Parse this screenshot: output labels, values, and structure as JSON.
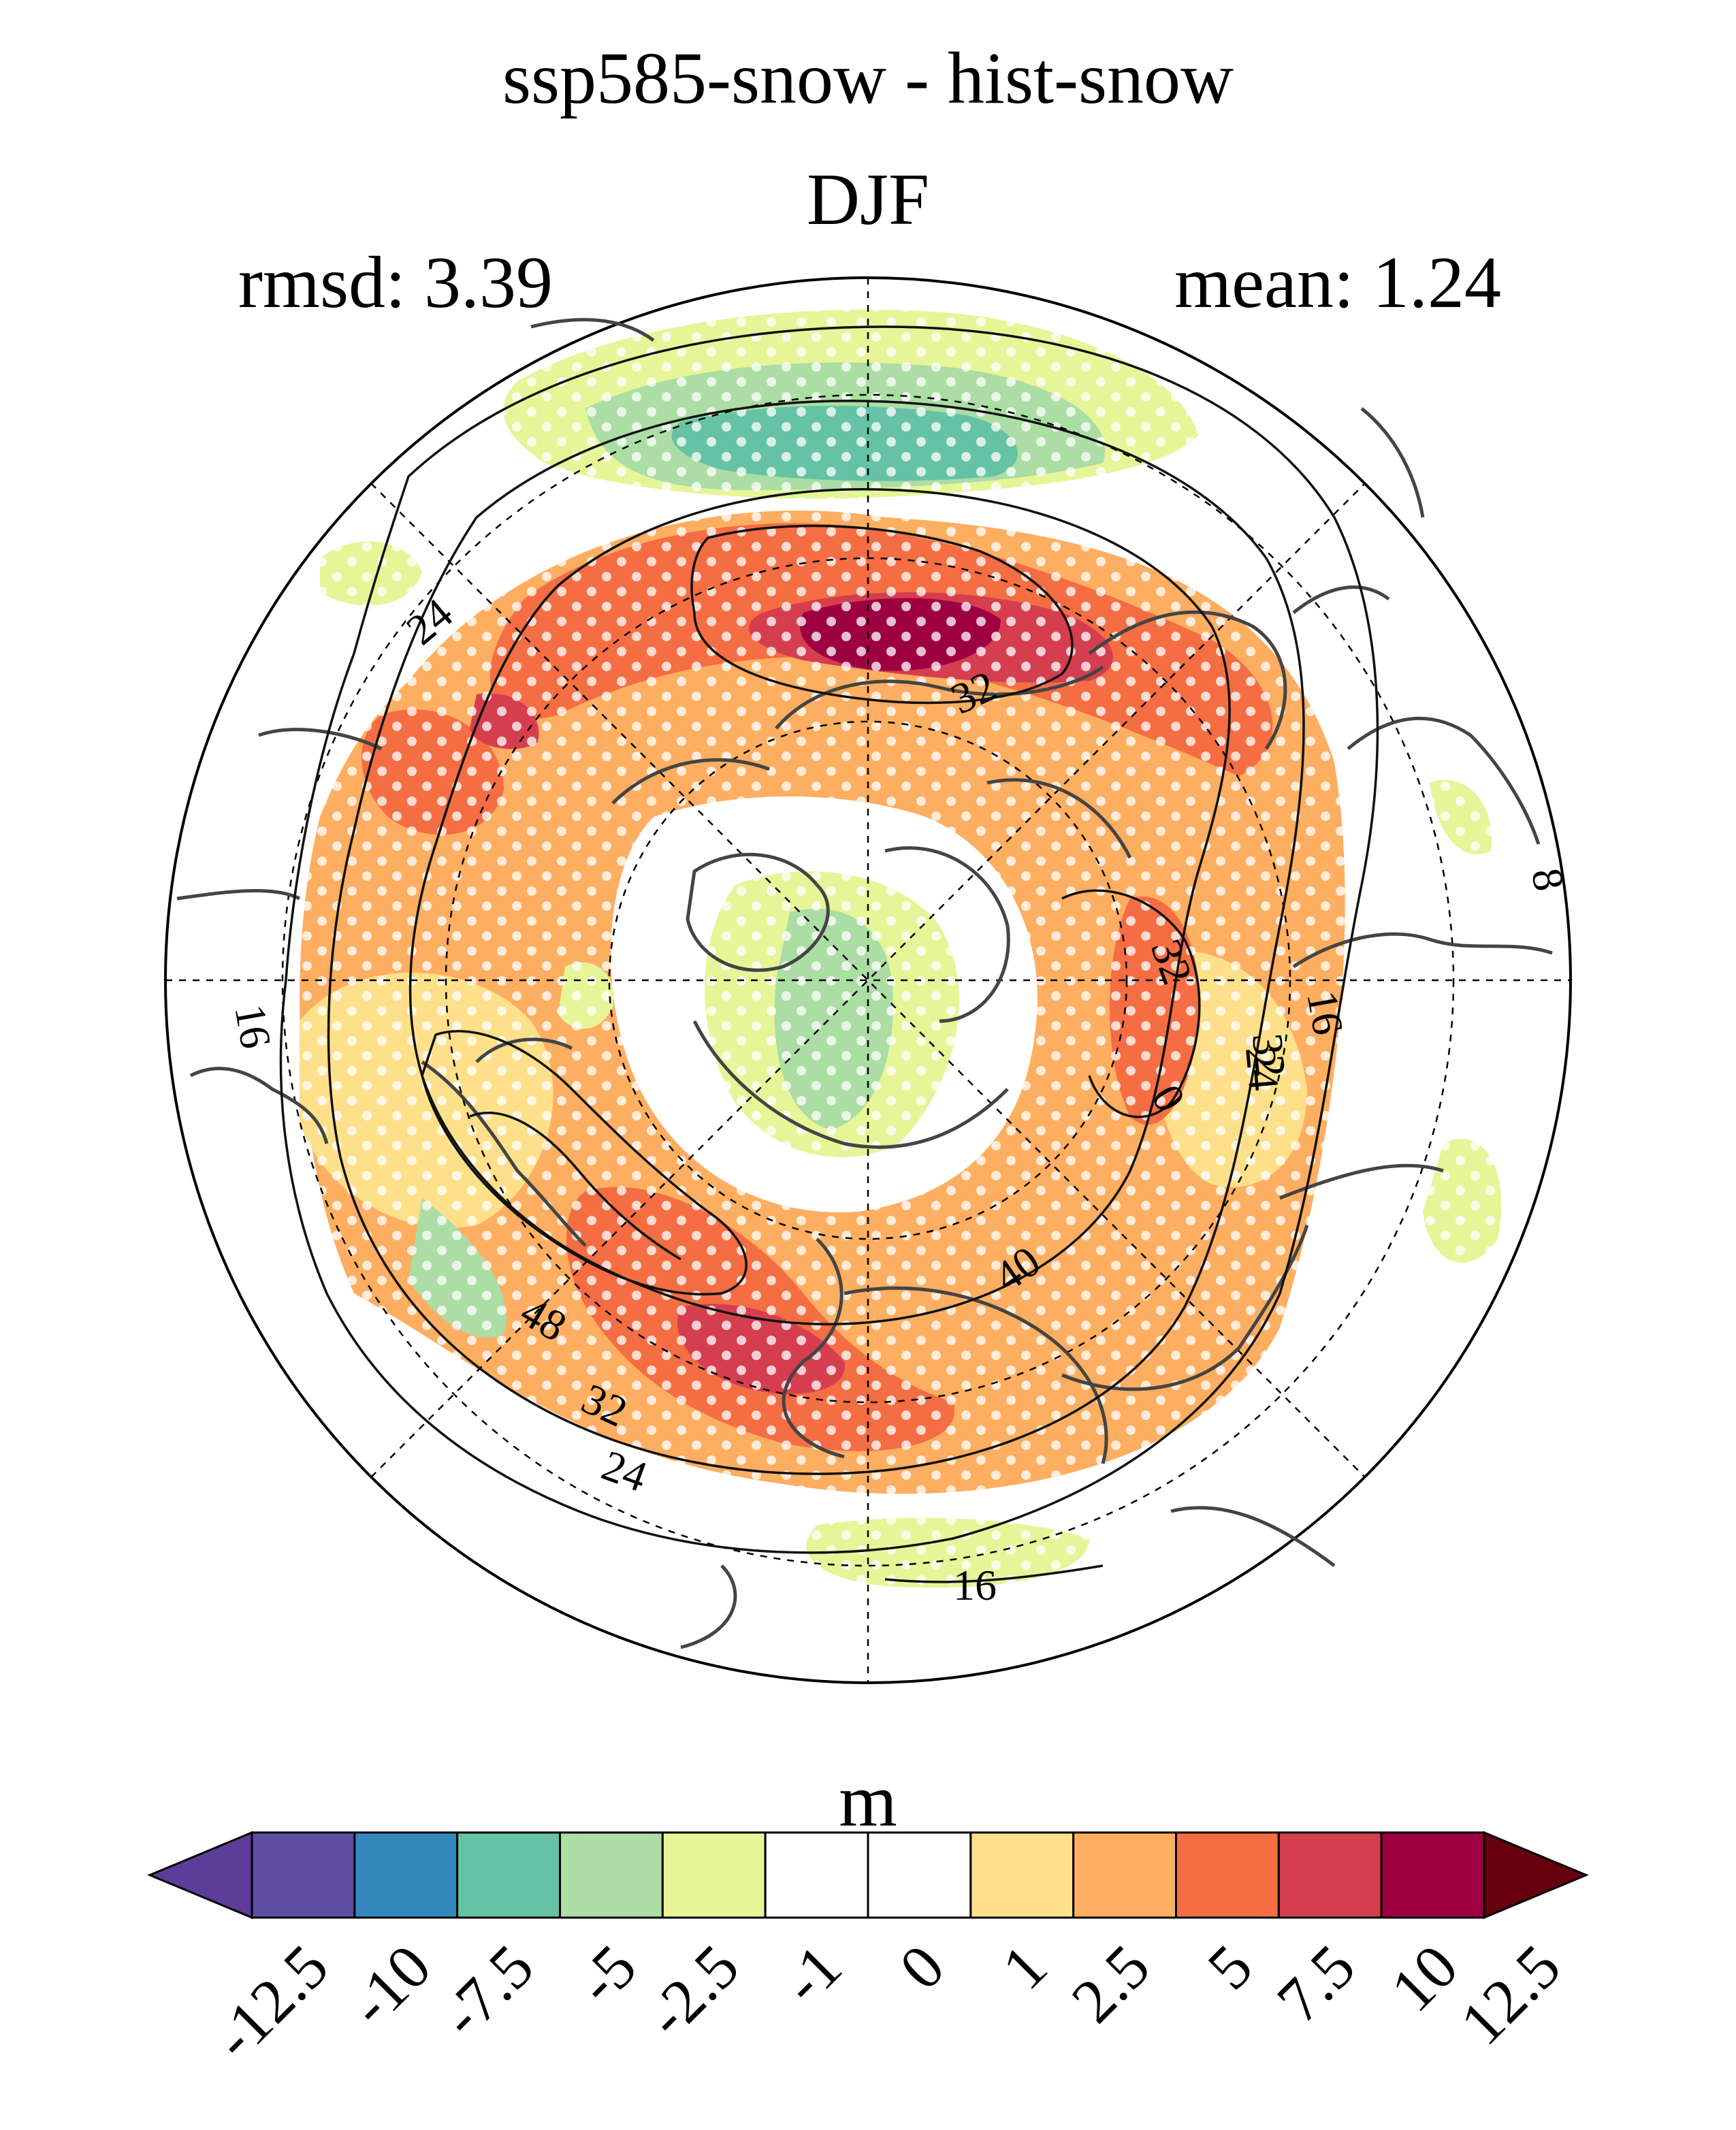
{
  "header": {
    "title": "ssp585-snow - hist-snow",
    "season": "DJF",
    "rmsd_label": "rmsd: 3.39",
    "mean_label": "mean: 1.24"
  },
  "map": {
    "projection": "north-polar-stereographic",
    "stippling": "white dots",
    "contour_labels": [
      "24",
      "32",
      "32",
      "8",
      "16",
      "32",
      "24",
      "0",
      "16",
      "40",
      "48",
      "32",
      "24",
      "16"
    ]
  },
  "colorbar": {
    "units": "m",
    "tick_labels": [
      "-12.5",
      "-10",
      "-7.5",
      "-5",
      "-2.5",
      "-1",
      "0",
      "1",
      "2.5",
      "5",
      "7.5",
      "10",
      "12.5"
    ],
    "colors": [
      "#5e3c99",
      "#5e4fa2",
      "#3288bd",
      "#66c2a5",
      "#abdda4",
      "#e6f598",
      "#ffffff",
      "#ffffff",
      "#fee08b",
      "#fdae61",
      "#f46d43",
      "#d53e4f",
      "#9e0142",
      "#67000d"
    ]
  }
}
